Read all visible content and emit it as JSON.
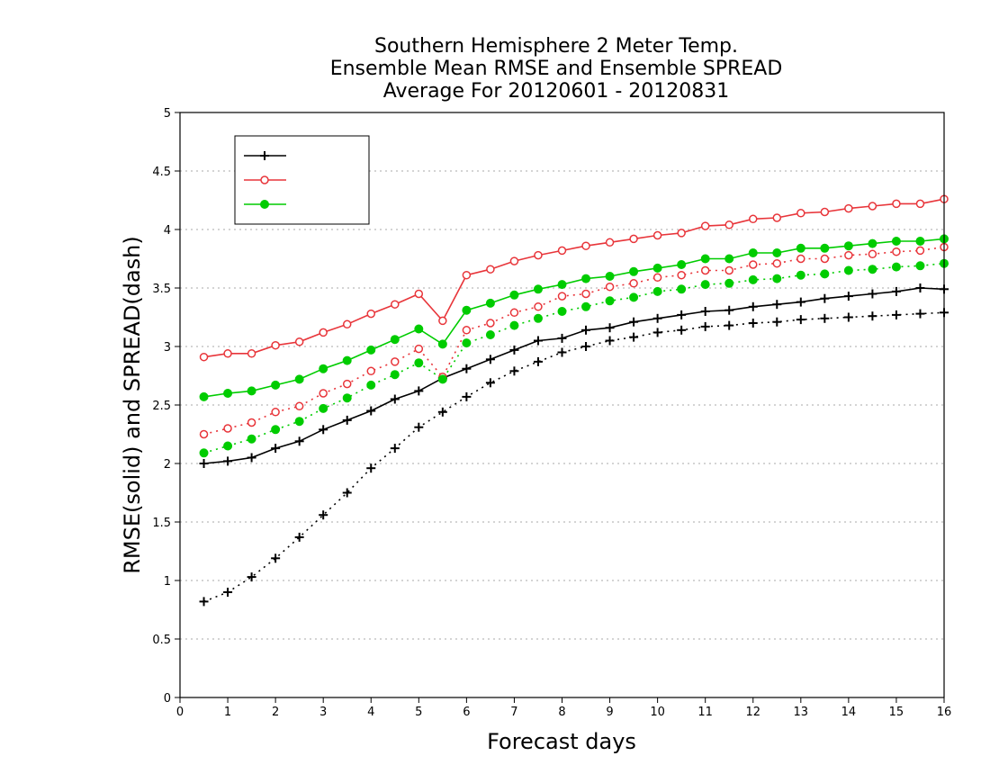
{
  "chart_data": {
    "type": "line",
    "title": [
      "Southern Hemisphere 2 Meter Temp.",
      "Ensemble Mean RMSE and Ensemble SPREAD",
      "Average For 20120601 - 20120831"
    ],
    "xlabel": "Forecast days",
    "ylabel": "RMSE(solid) and SPREAD(dash)",
    "xlim": [
      0,
      16
    ],
    "ylim": [
      0,
      5
    ],
    "xticks": [
      0,
      1,
      2,
      3,
      4,
      5,
      6,
      7,
      8,
      9,
      10,
      11,
      12,
      13,
      14,
      15,
      16
    ],
    "yticks": [
      0,
      0.5,
      1,
      1.5,
      2,
      2.5,
      3,
      3.5,
      4,
      4.5,
      5
    ],
    "ytick_labels": [
      "0",
      "0.5",
      "1",
      "1.5",
      "2",
      "2.5",
      "3",
      "3.5",
      "4",
      "4.5",
      "5"
    ],
    "grid": "horizontal dotted",
    "legend_position": "top-left",
    "x": [
      0.5,
      1,
      1.5,
      2,
      2.5,
      3,
      3.5,
      4,
      4.5,
      5,
      5.5,
      6,
      6.5,
      7,
      7.5,
      8,
      8.5,
      9,
      9.5,
      10,
      10.5,
      11,
      11.5,
      12,
      12.5,
      13,
      13.5,
      14,
      14.5,
      15,
      15.5,
      16
    ],
    "series": [
      {
        "name": "",
        "color": "#000000",
        "marker": "plus",
        "rmse": [
          2.0,
          2.02,
          2.05,
          2.13,
          2.19,
          2.29,
          2.37,
          2.45,
          2.55,
          2.62,
          2.73,
          2.81,
          2.89,
          2.97,
          3.05,
          3.07,
          3.14,
          3.16,
          3.21,
          3.24,
          3.27,
          3.3,
          3.31,
          3.34,
          3.36,
          3.38,
          3.41,
          3.43,
          3.45,
          3.47,
          3.5,
          3.49
        ],
        "spread": [
          0.82,
          0.9,
          1.03,
          1.19,
          1.37,
          1.56,
          1.75,
          1.96,
          2.13,
          2.31,
          2.44,
          2.57,
          2.69,
          2.79,
          2.87,
          2.95,
          3.0,
          3.05,
          3.08,
          3.12,
          3.14,
          3.17,
          3.18,
          3.2,
          3.21,
          3.23,
          3.24,
          3.25,
          3.26,
          3.27,
          3.28,
          3.29
        ]
      },
      {
        "name": "",
        "color": "#e8353a",
        "marker": "open-circle",
        "rmse": [
          2.91,
          2.94,
          2.94,
          3.01,
          3.04,
          3.12,
          3.19,
          3.28,
          3.36,
          3.45,
          3.22,
          3.61,
          3.66,
          3.73,
          3.78,
          3.82,
          3.86,
          3.89,
          3.92,
          3.95,
          3.97,
          4.03,
          4.04,
          4.09,
          4.1,
          4.14,
          4.15,
          4.18,
          4.2,
          4.22,
          4.22,
          4.26
        ],
        "spread": [
          2.25,
          2.3,
          2.35,
          2.44,
          2.49,
          2.6,
          2.68,
          2.79,
          2.87,
          2.98,
          2.74,
          3.14,
          3.2,
          3.29,
          3.34,
          3.43,
          3.45,
          3.51,
          3.54,
          3.59,
          3.61,
          3.65,
          3.65,
          3.7,
          3.71,
          3.75,
          3.75,
          3.78,
          3.79,
          3.81,
          3.82,
          3.85
        ]
      },
      {
        "name": "",
        "color": "#00cc00",
        "marker": "filled-circle",
        "rmse": [
          2.57,
          2.6,
          2.62,
          2.67,
          2.72,
          2.81,
          2.88,
          2.97,
          3.06,
          3.15,
          3.02,
          3.31,
          3.37,
          3.44,
          3.49,
          3.53,
          3.58,
          3.6,
          3.64,
          3.67,
          3.7,
          3.75,
          3.75,
          3.8,
          3.8,
          3.84,
          3.84,
          3.86,
          3.88,
          3.9,
          3.9,
          3.92
        ],
        "spread": [
          2.09,
          2.15,
          2.21,
          2.29,
          2.36,
          2.47,
          2.56,
          2.67,
          2.76,
          2.86,
          2.72,
          3.03,
          3.1,
          3.18,
          3.24,
          3.3,
          3.34,
          3.39,
          3.42,
          3.47,
          3.49,
          3.53,
          3.54,
          3.57,
          3.58,
          3.61,
          3.62,
          3.65,
          3.66,
          3.68,
          3.69,
          3.71
        ]
      }
    ]
  }
}
